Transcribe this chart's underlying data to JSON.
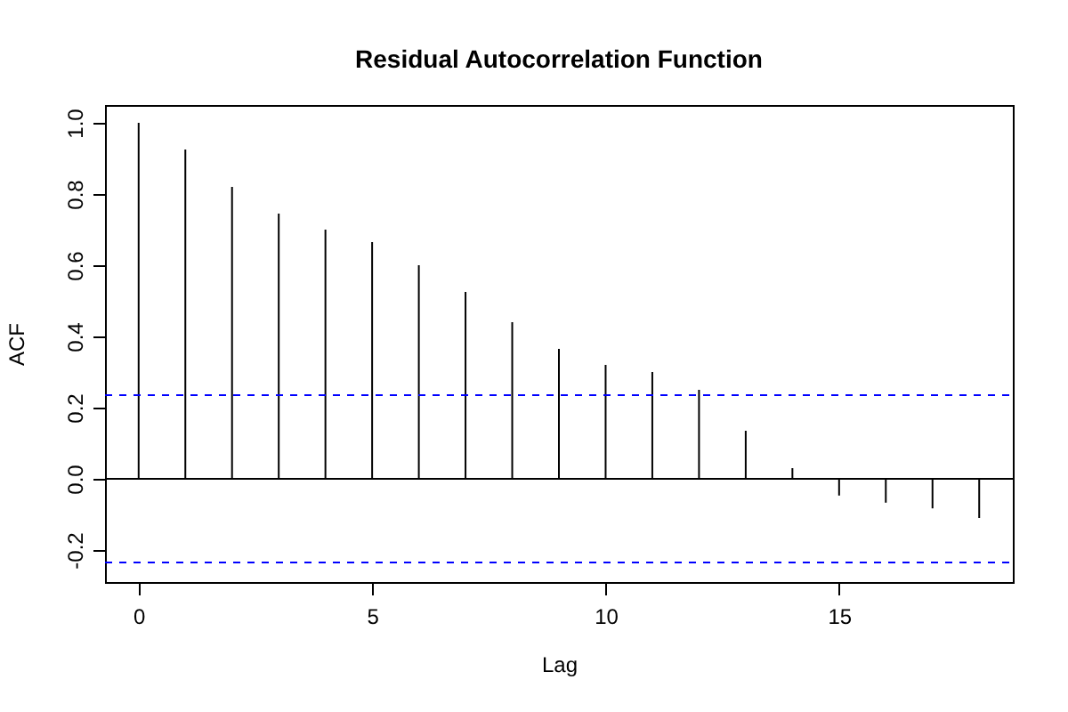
{
  "chart_data": {
    "type": "bar",
    "title": "Residual Autocorrelation Function",
    "xlabel": "Lag",
    "ylabel": "ACF",
    "x": [
      0,
      1,
      2,
      3,
      4,
      5,
      6,
      7,
      8,
      9,
      10,
      11,
      12,
      13,
      14,
      15,
      16,
      17,
      18
    ],
    "values": [
      1.0,
      0.925,
      0.82,
      0.745,
      0.7,
      0.665,
      0.6,
      0.525,
      0.44,
      0.365,
      0.32,
      0.3,
      0.25,
      0.135,
      0.03,
      -0.047,
      -0.067,
      -0.083,
      -0.11
    ],
    "color": "#000000",
    "xlim": [
      -0.72,
      18.72
    ],
    "xticks": [
      0,
      5,
      10,
      15
    ],
    "ylim": [
      -0.29,
      1.05
    ],
    "yticks": [
      {
        "value": -0.2,
        "label": "-0.2"
      },
      {
        "value": 0,
        "label": "0.0"
      },
      {
        "value": 0.2,
        "label": "0.2"
      },
      {
        "value": 0.4,
        "label": "0.4"
      },
      {
        "value": 0.6,
        "label": "0.6"
      },
      {
        "value": 0.8,
        "label": "0.8"
      },
      {
        "value": 1.0,
        "label": "1.0"
      }
    ],
    "ref_lines": [
      {
        "axis": "y",
        "value": 0,
        "color": "#000000",
        "line_style": "solid"
      },
      {
        "axis": "y",
        "value": 0.235,
        "color": "#0000ff",
        "line_style": "dashed"
      },
      {
        "axis": "y",
        "value": -0.235,
        "color": "#0000ff",
        "line_style": "dashed"
      }
    ]
  }
}
